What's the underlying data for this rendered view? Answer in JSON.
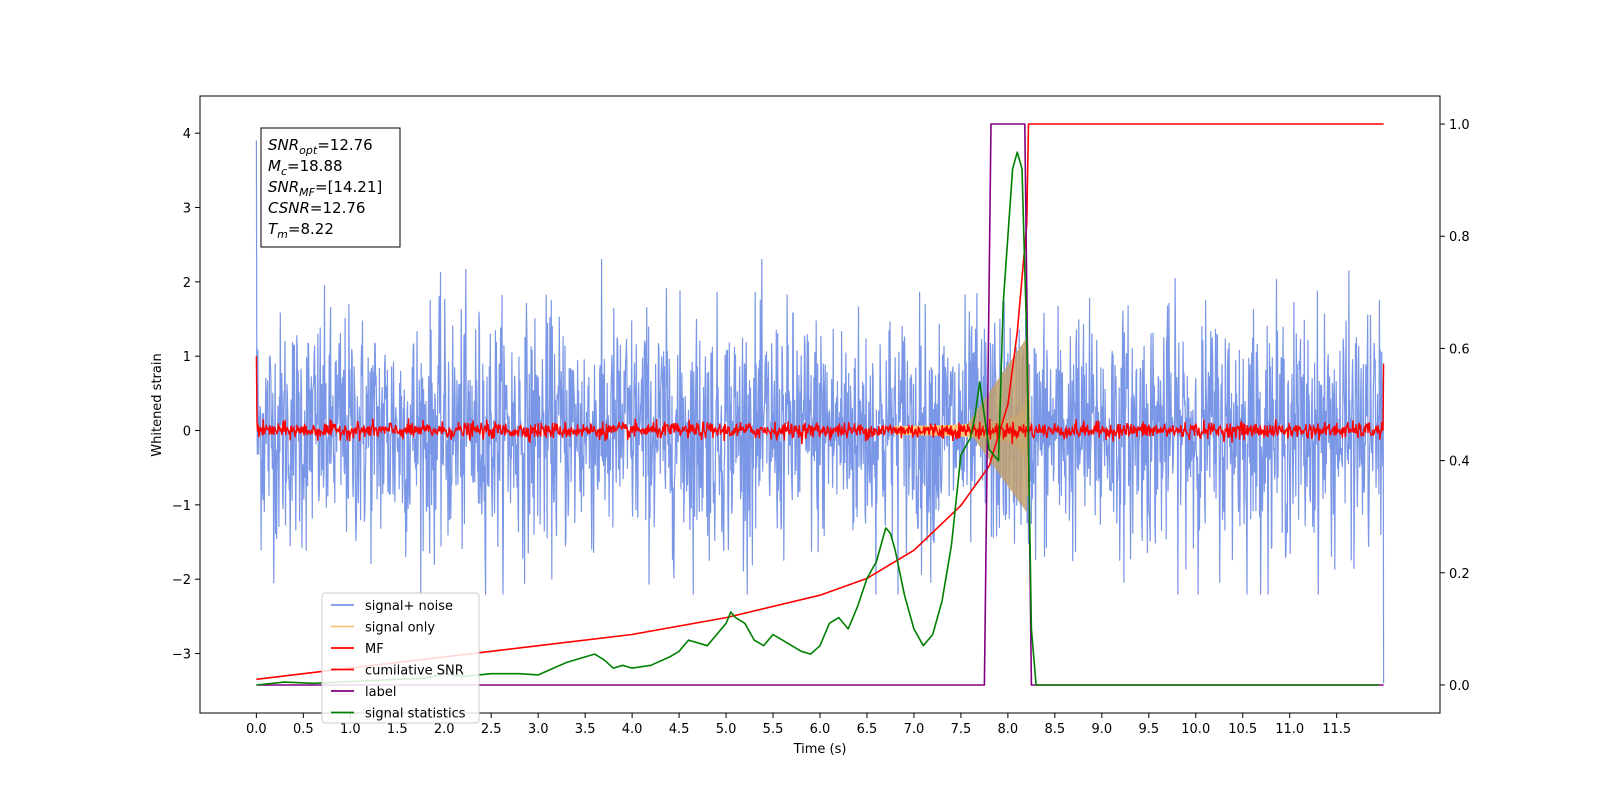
{
  "chart_data": {
    "type": "line",
    "title": "",
    "xlabel": "Time (s)",
    "ylabel": "Whitened strain",
    "xlim": [
      -0.6,
      12.6
    ],
    "ylim": [
      -3.8,
      4.5
    ],
    "y2lim": [
      -0.05,
      1.05
    ],
    "x_ticks": [
      "0.0",
      "0.5",
      "1.0",
      "1.5",
      "2.0",
      "2.5",
      "3.0",
      "3.5",
      "4.0",
      "4.5",
      "5.0",
      "5.5",
      "6.0",
      "6.5",
      "7.0",
      "7.5",
      "8.0",
      "8.5",
      "9.0",
      "9.5",
      "10.0",
      "10.5",
      "11.0",
      "11.5"
    ],
    "y_ticks": [
      "4",
      "3",
      "2",
      "1",
      "0",
      "−1",
      "−2",
      "−3"
    ],
    "y2_ticks": [
      "1.0",
      "0.8",
      "0.6",
      "0.4",
      "0.2",
      "0.0"
    ],
    "legend_placement": "lower-left",
    "annotation": {
      "lines": [
        {
          "base": "SNR",
          "sub": "opt",
          "rest": "=12.76"
        },
        {
          "base": "M",
          "sub": "c",
          "rest": "=18.88"
        },
        {
          "base": "SNR",
          "sub": "MF",
          "rest": "=[14.21]"
        },
        {
          "base": "CSNR",
          "sub": "",
          "rest": "=12.76"
        },
        {
          "base": "T",
          "sub": "m",
          "rest": "=8.22"
        }
      ]
    },
    "series": [
      {
        "name": "signal+ noise",
        "color": "#7a96e6",
        "axis": "left",
        "description_range": [
          -2.2,
          2.5
        ],
        "x_range": [
          0.0,
          12.0
        ]
      },
      {
        "name": "signal only",
        "color": "#f5c97a",
        "axis": "left",
        "x_range": [
          0.0,
          8.22
        ],
        "peak_amplitude": 1.0
      },
      {
        "name": "MF",
        "color": "#ff0000",
        "axis": "left",
        "x_range": [
          0.0,
          12.0
        ],
        "amplitude": 0.1
      },
      {
        "name": "cumilative SNR",
        "color": "#ff0000",
        "axis": "right",
        "x": [
          0.0,
          1.0,
          2.0,
          3.0,
          4.0,
          5.0,
          6.0,
          6.5,
          7.0,
          7.5,
          7.8,
          8.0,
          8.1,
          8.2,
          8.22,
          12.0
        ],
        "y": [
          0.01,
          0.03,
          0.05,
          0.07,
          0.09,
          0.12,
          0.16,
          0.19,
          0.24,
          0.32,
          0.39,
          0.5,
          0.63,
          0.82,
          1.0,
          1.0
        ]
      },
      {
        "name": "label",
        "color": "#800080",
        "axis": "right",
        "x": [
          0.0,
          7.75,
          7.82,
          8.18,
          8.25,
          12.0
        ],
        "y": [
          0.0,
          0.0,
          1.0,
          1.0,
          0.0,
          0.0
        ]
      },
      {
        "name": "signal statistics",
        "color": "#008000",
        "axis": "right",
        "x": [
          0.0,
          0.3,
          0.6,
          1.0,
          1.5,
          1.8,
          2.0,
          2.2,
          2.5,
          2.8,
          3.0,
          3.3,
          3.5,
          3.6,
          3.7,
          3.8,
          3.9,
          4.0,
          4.2,
          4.4,
          4.5,
          4.6,
          4.8,
          5.0,
          5.05,
          5.1,
          5.2,
          5.3,
          5.4,
          5.5,
          5.6,
          5.8,
          5.9,
          6.0,
          6.1,
          6.2,
          6.3,
          6.4,
          6.5,
          6.6,
          6.7,
          6.75,
          6.8,
          6.9,
          7.0,
          7.1,
          7.2,
          7.3,
          7.4,
          7.5,
          7.6,
          7.65,
          7.7,
          7.75,
          7.8,
          7.9,
          7.95,
          8.0,
          8.05,
          8.1,
          8.15,
          8.2,
          8.25,
          8.3,
          8.5,
          9.0,
          10.0,
          11.0,
          11.95
        ],
        "y": [
          0.0,
          0.005,
          0.003,
          0.006,
          0.01,
          0.012,
          0.02,
          0.015,
          0.02,
          0.02,
          0.018,
          0.04,
          0.05,
          0.055,
          0.045,
          0.03,
          0.035,
          0.03,
          0.035,
          0.05,
          0.06,
          0.08,
          0.07,
          0.11,
          0.13,
          0.12,
          0.11,
          0.08,
          0.07,
          0.09,
          0.08,
          0.06,
          0.055,
          0.07,
          0.11,
          0.12,
          0.1,
          0.14,
          0.19,
          0.22,
          0.28,
          0.27,
          0.24,
          0.16,
          0.1,
          0.07,
          0.09,
          0.15,
          0.25,
          0.41,
          0.44,
          0.48,
          0.54,
          0.48,
          0.42,
          0.4,
          0.68,
          0.8,
          0.92,
          0.95,
          0.92,
          0.62,
          0.1,
          0.0,
          0.0,
          0.0,
          0.0,
          0.0,
          0.0
        ]
      }
    ]
  }
}
